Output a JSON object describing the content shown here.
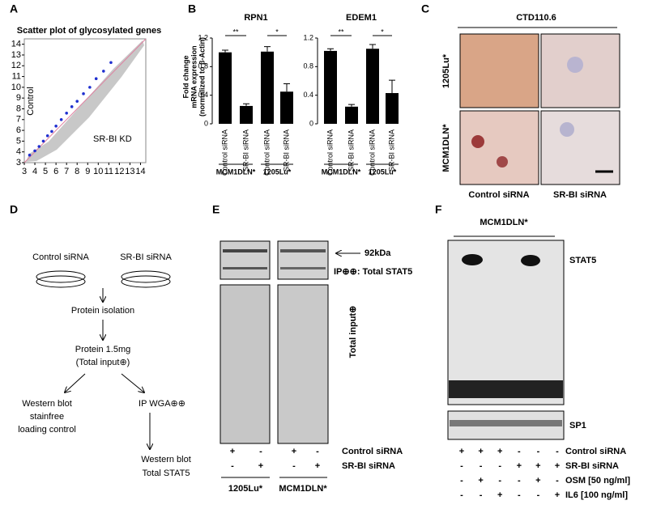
{
  "chart_data": [
    {
      "type": "scatter",
      "panel": "A",
      "title": "Scatter plot of glycosylated genes",
      "x_label": "SR-BI KD",
      "y_label": "Control",
      "color": "#1f2fd0",
      "x": [
        3.5,
        4.0,
        4.4,
        4.8,
        5.2,
        5.6,
        6.0,
        6.5,
        7.0,
        7.5,
        8.0,
        8.6,
        9.2,
        9.8,
        10.5,
        11.2
      ],
      "y": [
        3.7,
        4.1,
        4.5,
        5.0,
        5.5,
        5.9,
        6.4,
        7.0,
        7.6,
        8.2,
        8.7,
        9.4,
        10.0,
        10.8,
        11.5,
        12.3
      ],
      "xlim": [
        3,
        14.5
      ],
      "ylim": [
        3,
        14.5
      ],
      "xticks": [
        3,
        4,
        5,
        6,
        7,
        8,
        9,
        10,
        11,
        12,
        13,
        14
      ],
      "yticks": [
        3,
        4,
        5,
        6,
        7,
        8,
        9,
        10,
        11,
        12,
        13,
        14
      ]
    },
    {
      "type": "bar",
      "panel": "B",
      "title": "RPN1",
      "ylabel": [
        "Fold change",
        "mRNA expression",
        "(normalized to β-Actin)"
      ],
      "categories": [
        "Control siRNA",
        "SR-BI siRNA",
        "Control siRNA",
        "SR-BI siRNA"
      ],
      "groups": [
        "MCM1DLN*",
        "1205Lu*"
      ],
      "values": [
        1.0,
        0.25,
        1.01,
        0.45
      ],
      "errors": [
        0.03,
        0.03,
        0.07,
        0.11
      ],
      "color": "#000000",
      "annotations": [
        "**",
        "*"
      ],
      "ylim": [
        0,
        1.2
      ],
      "yticks": [
        0,
        0.4,
        0.8,
        1.2
      ]
    },
    {
      "type": "bar",
      "title": "EDEM1",
      "categories": [
        "Control siRNA",
        "SR-BI siRNA",
        "Control siRNA",
        "SR-BI siRNA"
      ],
      "groups": [
        "MCM1DLN*",
        "1205Lu*"
      ],
      "values": [
        1.02,
        0.24,
        1.05,
        0.43
      ],
      "errors": [
        0.03,
        0.03,
        0.06,
        0.18
      ],
      "color": "#000000",
      "annotations": [
        "**",
        "*"
      ],
      "ylim": [
        0,
        1.2
      ],
      "yticks": [
        0,
        0.4,
        0.8,
        1.2
      ]
    }
  ],
  "panel_c": {
    "label": "C",
    "antibody": "CTD110.6",
    "rows": [
      "1205Lu*",
      "MCM1DLN*"
    ],
    "columns": [
      "Control siRNA",
      "SR-BI siRNA"
    ]
  },
  "panel_d": {
    "label": "D",
    "left": "Control siRNA",
    "right": "SR-BI siRNA",
    "step1": "Protein isolation",
    "step2": [
      "Protein 1.5mg",
      "(Total input⊕)"
    ],
    "branch_left": [
      "Western blot",
      "stainfree",
      "loading control"
    ],
    "branch_right": "IP WGA⊕⊕",
    "final": [
      "Western blot",
      "Total STAT5"
    ]
  },
  "panel_e": {
    "label": "E",
    "marker": "92kDa",
    "ip_label": "IP⊕⊕: Total STAT5",
    "input_label": "Total input⊕",
    "rows": [
      {
        "name": "Control siRNA",
        "signs": [
          "+",
          "-",
          "+",
          "-"
        ]
      },
      {
        "name": "SR-BI siRNA",
        "signs": [
          "-",
          "+",
          "-",
          "+"
        ]
      }
    ],
    "groups": [
      "1205Lu*",
      "MCM1DLN*"
    ]
  },
  "panel_f": {
    "label": "F",
    "cell_line": "MCM1DLN*",
    "bands": [
      "STAT5",
      "SP1"
    ],
    "rows": [
      {
        "name": "Control siRNA",
        "signs": [
          "+",
          "+",
          "+",
          "-",
          "-",
          "-"
        ]
      },
      {
        "name": "SR-BI siRNA",
        "signs": [
          "-",
          "-",
          "-",
          "+",
          "+",
          "+"
        ]
      },
      {
        "name": "OSM [50 ng/ml]",
        "signs": [
          "-",
          "+",
          "-",
          "-",
          "+",
          "-"
        ]
      },
      {
        "name": "IL6 [100 ng/ml]",
        "signs": [
          "-",
          "-",
          "+",
          "-",
          "-",
          "+"
        ]
      }
    ]
  }
}
